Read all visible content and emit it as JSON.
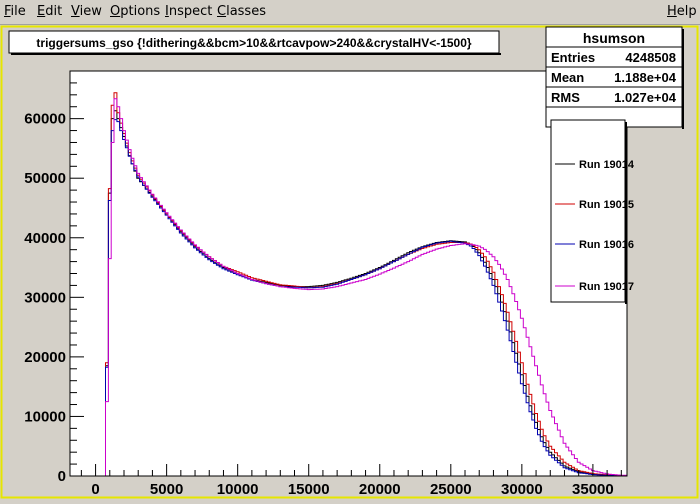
{
  "menu": {
    "items": [
      {
        "label": "File",
        "underline": "F",
        "rest": "ile"
      },
      {
        "label": "Edit",
        "underline": "E",
        "rest": "dit"
      },
      {
        "label": "View",
        "underline": "V",
        "rest": "iew"
      },
      {
        "label": "Options",
        "underline": "O",
        "rest": "ptions"
      },
      {
        "label": "Inspect",
        "underline": "I",
        "rest": "nspect"
      },
      {
        "label": "Classes",
        "underline": "C",
        "rest": "lasses"
      }
    ],
    "help": {
      "label": "Help",
      "underline": "H",
      "rest": "elp"
    }
  },
  "chart_data": {
    "type": "line",
    "title": "triggersums_gso {!dithering&&bcm>10&&rtcavpow>240&&crystalHV<-1500}",
    "xlim": [
      -1800,
      37400
    ],
    "ylim": [
      0,
      68000
    ],
    "xticks": [
      0,
      5000,
      10000,
      15000,
      20000,
      25000,
      30000,
      35000
    ],
    "yticks": [
      0,
      10000,
      20000,
      30000,
      40000,
      50000,
      60000
    ],
    "grid": false,
    "stats": {
      "name": "hsumson",
      "rows": [
        {
          "label": "Entries",
          "value": "4248508"
        },
        {
          "label": "Mean",
          "value": "1.188e+04"
        },
        {
          "label": "RMS",
          "value": "1.027e+04"
        }
      ]
    },
    "legend_position": "right",
    "series": [
      {
        "name": "Run 19014",
        "color": "#000000",
        "x": [
          700,
          900,
          1100,
          1300,
          1600,
          2000,
          2500,
          3000,
          4000,
          5000,
          6000,
          7000,
          8000,
          9000,
          10000,
          11000,
          12000,
          13000,
          14000,
          15000,
          16000,
          17000,
          18000,
          19000,
          20000,
          21000,
          22000,
          23000,
          24000,
          25000,
          26000,
          26500,
          27000,
          27500,
          28000,
          28500,
          29000,
          29500,
          30000,
          30500,
          31000,
          31500,
          32000,
          33000,
          34000,
          35000,
          36000,
          37000
        ],
        "y": [
          0,
          37000,
          58000,
          62000,
          60000,
          57000,
          53000,
          50000,
          47000,
          44000,
          41000,
          38500,
          36500,
          35000,
          34000,
          33000,
          32500,
          32000,
          31800,
          31800,
          32000,
          32500,
          33200,
          34000,
          35000,
          36200,
          37500,
          38500,
          39200,
          39500,
          39300,
          38800,
          37500,
          35500,
          33000,
          30000,
          26000,
          21500,
          17000,
          12500,
          9000,
          6000,
          4000,
          1700,
          700,
          300,
          150,
          50
        ]
      },
      {
        "name": "Run 19015",
        "color": "#d00000",
        "x": [
          700,
          900,
          1100,
          1300,
          1600,
          2000,
          2500,
          3000,
          4000,
          5000,
          6000,
          7000,
          8000,
          9000,
          10000,
          11000,
          12000,
          13000,
          14000,
          15000,
          16000,
          17000,
          18000,
          19000,
          20000,
          21000,
          22000,
          23000,
          24000,
          25000,
          26000,
          26500,
          27000,
          27500,
          28000,
          28500,
          29000,
          29500,
          30000,
          30500,
          31000,
          31500,
          32000,
          33000,
          34000,
          35000,
          36000,
          37000
        ],
        "y": [
          0,
          38000,
          58500,
          66000,
          61000,
          57500,
          53500,
          50500,
          47200,
          44000,
          41200,
          38700,
          36800,
          35200,
          34300,
          33300,
          32700,
          32100,
          31900,
          31600,
          31800,
          32300,
          33000,
          33800,
          34800,
          36000,
          37200,
          38200,
          38900,
          39200,
          39200,
          38900,
          38000,
          36500,
          34200,
          31200,
          27500,
          23500,
          19000,
          14500,
          10500,
          7200,
          5000,
          2300,
          900,
          400,
          200,
          80
        ]
      },
      {
        "name": "Run 19016",
        "color": "#0000b0",
        "x": [
          700,
          900,
          1100,
          1300,
          1600,
          2000,
          2500,
          3000,
          4000,
          5000,
          6000,
          7000,
          8000,
          9000,
          10000,
          11000,
          12000,
          13000,
          14000,
          15000,
          16000,
          17000,
          18000,
          19000,
          20000,
          21000,
          22000,
          23000,
          24000,
          25000,
          26000,
          26500,
          27000,
          27500,
          28000,
          28500,
          29000,
          29500,
          30000,
          30500,
          31000,
          31500,
          32000,
          33000,
          34000,
          35000,
          36000,
          37000
        ],
        "y": [
          0,
          36500,
          56000,
          60000,
          59500,
          56500,
          53000,
          50200,
          46800,
          43800,
          40800,
          38300,
          36300,
          34800,
          33800,
          32900,
          32300,
          31800,
          31700,
          31600,
          31700,
          32200,
          33000,
          33800,
          34800,
          36000,
          37200,
          38400,
          39100,
          39400,
          39100,
          38500,
          37000,
          34800,
          32000,
          28500,
          24500,
          20000,
          15500,
          11500,
          8000,
          5300,
          3500,
          1400,
          550,
          250,
          100,
          40
        ]
      },
      {
        "name": "Run 19017",
        "color": "#cc00cc",
        "x": [
          700,
          900,
          1100,
          1300,
          1600,
          2000,
          2500,
          3000,
          4000,
          5000,
          6000,
          7000,
          8000,
          9000,
          10000,
          11000,
          12000,
          13000,
          14000,
          15000,
          16000,
          17000,
          18000,
          19000,
          20000,
          21000,
          22000,
          23000,
          24000,
          25000,
          26000,
          26500,
          27000,
          27500,
          28000,
          28500,
          29000,
          29500,
          30000,
          30500,
          31000,
          31500,
          32000,
          33000,
          34000,
          35000,
          36000,
          37000
        ],
        "y": [
          0,
          25000,
          48000,
          64000,
          62000,
          58000,
          54000,
          50800,
          47300,
          44200,
          41300,
          38800,
          36800,
          35200,
          34000,
          33000,
          32300,
          31800,
          31500,
          31300,
          31400,
          31800,
          32400,
          33000,
          33900,
          34900,
          36000,
          37200,
          38100,
          38700,
          39000,
          38900,
          38600,
          37900,
          36800,
          35200,
          33000,
          30000,
          26500,
          22500,
          18500,
          14500,
          11000,
          5500,
          2300,
          900,
          350,
          120
        ]
      }
    ]
  }
}
